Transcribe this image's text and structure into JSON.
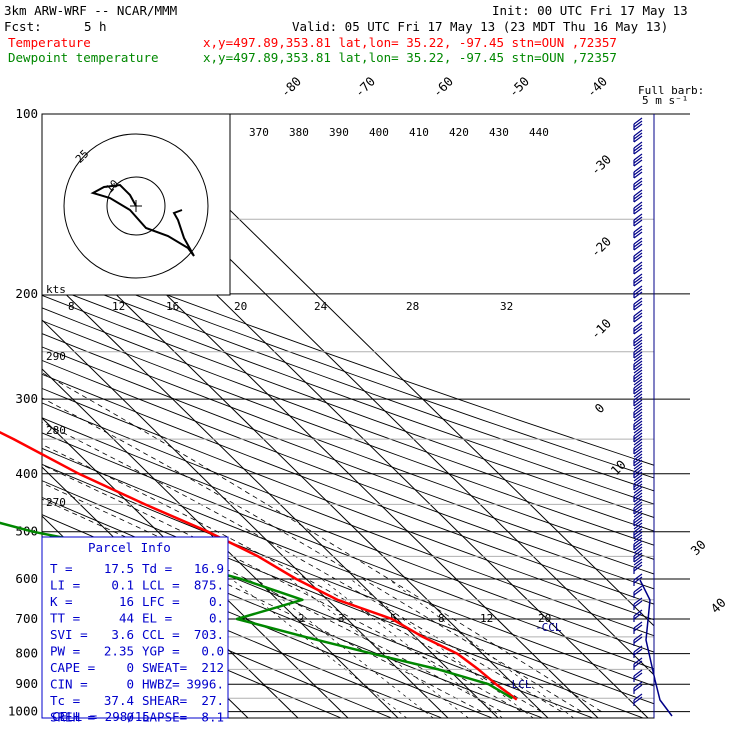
{
  "header": {
    "model": "3km ARW-WRF -- NCAR/MMM",
    "init": "Init: 00 UTC Fri 17 May 13",
    "fcst_label": "Fcst:",
    "fcst_value": "5 h",
    "valid": "Valid: 05 UTC Fri 17 May 13 (23 MDT Thu 16 May 13)",
    "temp_label": "Temperature",
    "dew_label": "Dewpoint temperature",
    "location": "x,y=497.89,353.81   lat,lon= 35.22, -97.45   stn=OUN ,72357"
  },
  "colors": {
    "temperature": "#ff0000",
    "dewpoint": "#008800",
    "parcel_box": "#0000cc",
    "barbs": "#000088"
  },
  "wind_legend": {
    "line1": "Full barb:",
    "line2": "5 m s⁻¹"
  },
  "hodograph": {
    "ring_labels": [
      "25",
      "10"
    ],
    "kts_label": "kts"
  },
  "parcel_info": {
    "title": "Parcel Info",
    "rows": [
      [
        "T  =",
        "17.5",
        "Td =",
        "16.9"
      ],
      [
        "LI =",
        "0.1",
        "LCL =",
        "875."
      ],
      [
        "K  =",
        "16",
        "LFC =",
        "0."
      ],
      [
        "TT =",
        "44",
        "EL  =",
        "0."
      ],
      [
        "SVI =",
        "3.6",
        "CCL =",
        "703."
      ],
      [
        "PW =",
        "2.35",
        "YGP =",
        "0.0"
      ],
      [
        "CAPE =",
        "0",
        "SWEAT=",
        "212"
      ],
      [
        "CIN =",
        "0",
        "HWBZ=",
        "3996."
      ],
      [
        "Tc =",
        "37.4",
        "SHEAR=",
        "27."
      ],
      [
        "SREH =",
        "0",
        "LAPSE=",
        "8.1"
      ]
    ],
    "cell": "CELL = 298/15"
  },
  "level_labels": {
    "ccl": "-CCL",
    "lcl": "-LCL"
  },
  "chart_data": {
    "type": "line",
    "pressure_levels": [
      100,
      200,
      300,
      400,
      500,
      600,
      700,
      800,
      900,
      1000
    ],
    "temperature_ticks": [
      "-80",
      "-70",
      "-60",
      "-50",
      "-40",
      "-30",
      "-20",
      "-10",
      "0",
      "10",
      "30",
      "40"
    ],
    "theta_labels": [
      "370",
      "380",
      "390",
      "400",
      "410",
      "420",
      "430",
      "440"
    ],
    "theta_low_labels": [
      "290",
      "280",
      "270"
    ],
    "mixing_ratio_top": [
      "8",
      "12",
      "16",
      "20",
      "24",
      "28",
      "32"
    ],
    "mixing_ratio_bottom": [
      "2",
      "3",
      "5",
      "8",
      "12",
      "20"
    ],
    "series": [
      {
        "name": "Temperature",
        "points": [
          [
            100,
            -57
          ],
          [
            150,
            -54
          ],
          [
            200,
            -52
          ],
          [
            250,
            -45
          ],
          [
            300,
            -38
          ],
          [
            350,
            -30
          ],
          [
            400,
            -24
          ],
          [
            450,
            -17
          ],
          [
            500,
            -10
          ],
          [
            550,
            -5
          ],
          [
            600,
            -2
          ],
          [
            650,
            2
          ],
          [
            700,
            9
          ],
          [
            750,
            11.5
          ],
          [
            800,
            15
          ],
          [
            850,
            16
          ],
          [
            900,
            16.5
          ],
          [
            925,
            17
          ],
          [
            955,
            17.5
          ]
        ]
      },
      {
        "name": "Dewpoint temperature",
        "points": [
          [
            100,
            -88
          ],
          [
            130,
            -86
          ],
          [
            150,
            -83
          ],
          [
            200,
            -82
          ],
          [
            250,
            -73
          ],
          [
            300,
            -73
          ],
          [
            350,
            -68
          ],
          [
            400,
            -65
          ],
          [
            450,
            -60
          ],
          [
            500,
            -45
          ],
          [
            550,
            -25
          ],
          [
            600,
            -13
          ],
          [
            650,
            -5
          ],
          [
            700,
            -22
          ],
          [
            750,
            -12
          ],
          [
            800,
            -2
          ],
          [
            850,
            8
          ],
          [
            900,
            15
          ],
          [
            950,
            16.9
          ]
        ]
      }
    ]
  }
}
